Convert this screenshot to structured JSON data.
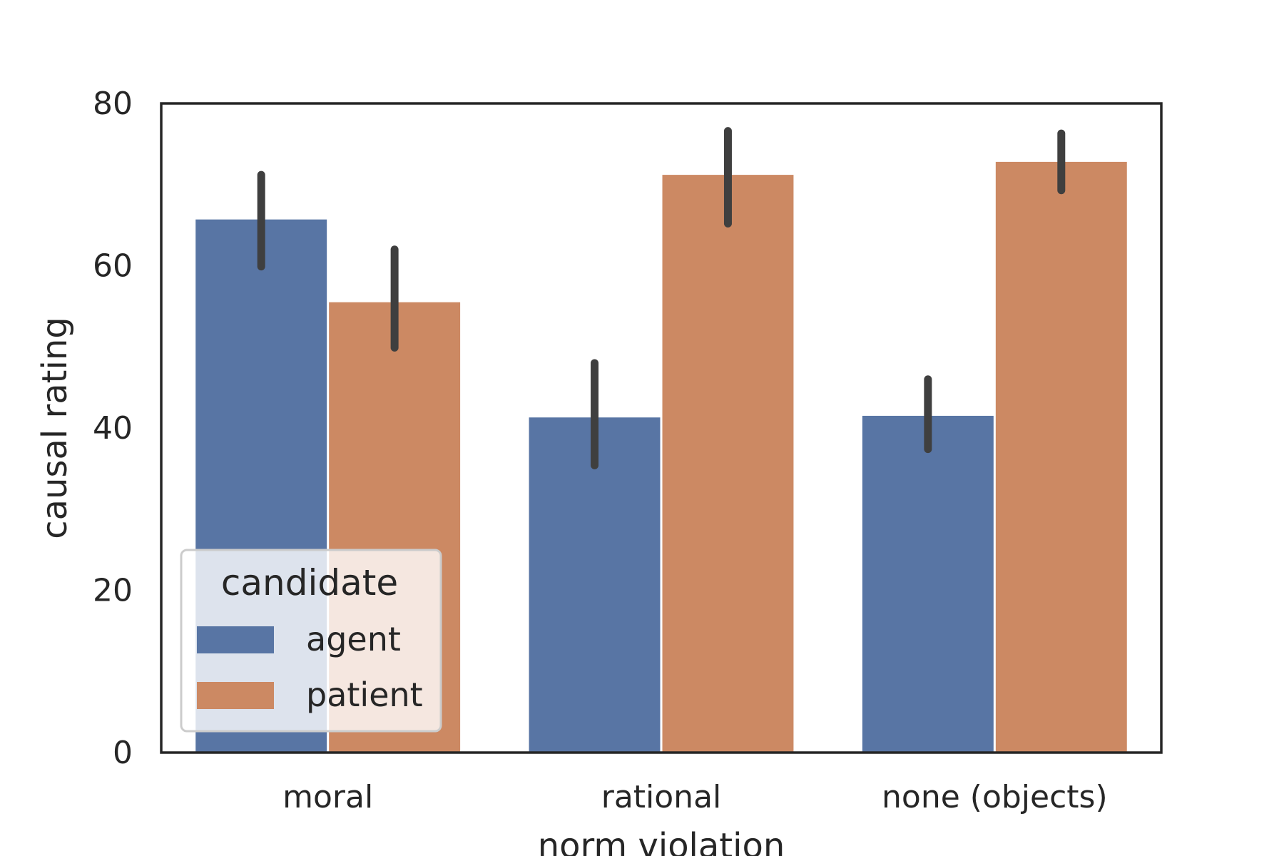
{
  "chart_data": {
    "type": "bar",
    "title": "",
    "xlabel": "norm  violation",
    "ylabel": "causal rating",
    "categories": [
      "moral",
      "rational",
      "none (objects)"
    ],
    "ylim": [
      0,
      80
    ],
    "yticks": [
      0,
      20,
      40,
      60,
      80
    ],
    "grid": false,
    "legend": {
      "title": "candidate",
      "placement": "lower-left"
    },
    "series": [
      {
        "name": "agent",
        "color": "#5875a4",
        "values": [
          65.7,
          41.3,
          41.5
        ],
        "ci_low": [
          59.9,
          35.4,
          37.4
        ],
        "ci_high": [
          71.2,
          48.0,
          46.0
        ]
      },
      {
        "name": "patient",
        "color": "#cc8963",
        "values": [
          55.5,
          71.2,
          72.8
        ],
        "ci_low": [
          49.9,
          65.2,
          69.3
        ],
        "ci_high": [
          62.0,
          76.6,
          76.3
        ]
      }
    ],
    "errorbar_color": "#3f3f3f"
  }
}
